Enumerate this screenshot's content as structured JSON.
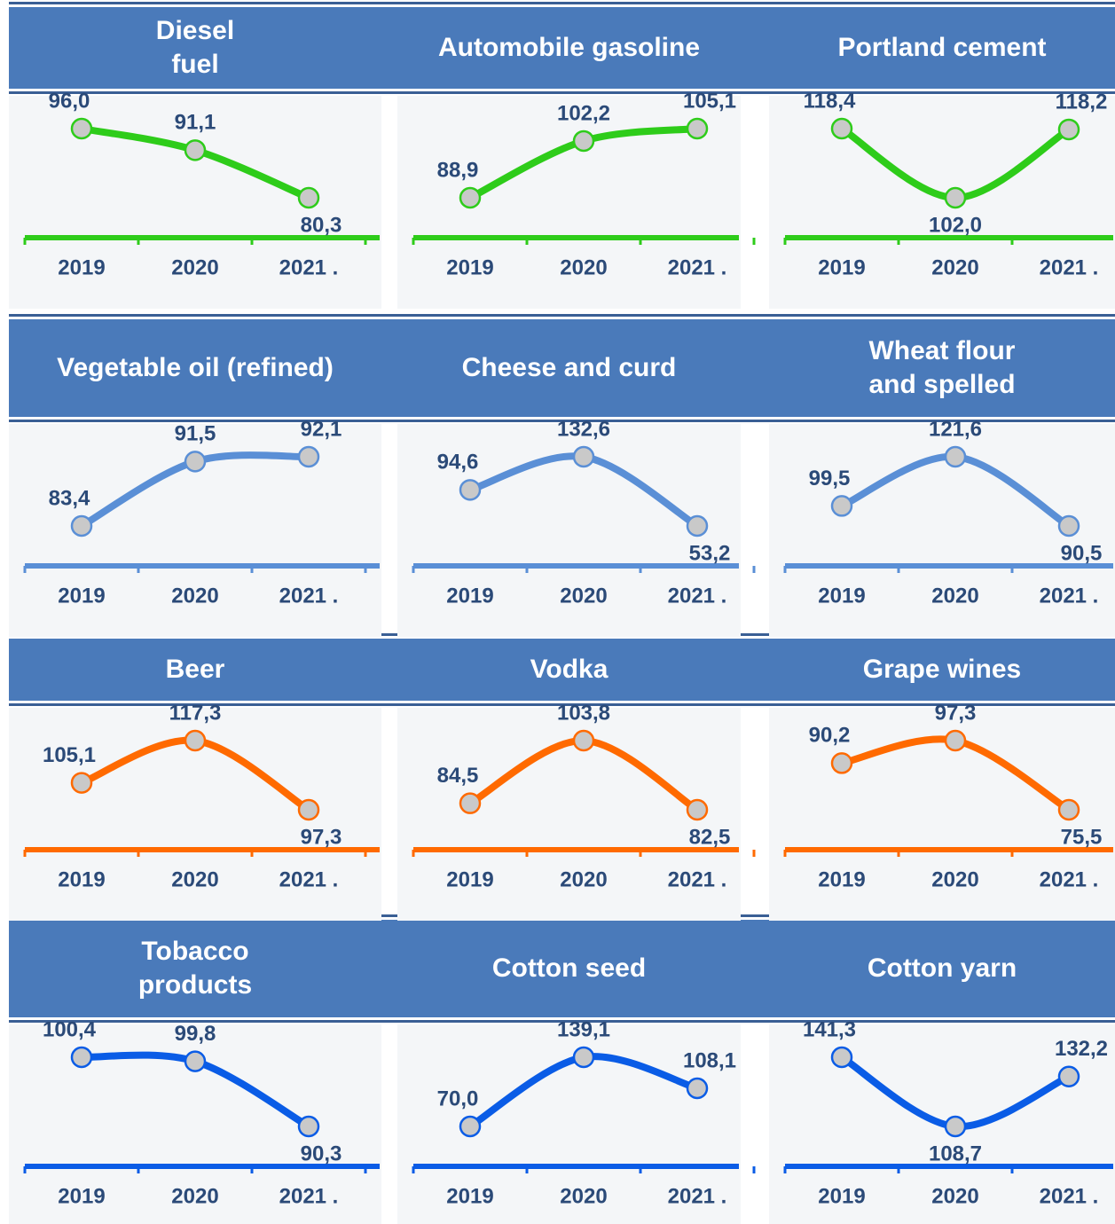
{
  "chart_data": [
    {
      "type": "line",
      "title": "Diesel\nfuel",
      "categories": [
        "2019",
        "2020",
        "2021 ."
      ],
      "values": [
        96.0,
        91.1,
        80.3
      ],
      "value_labels": [
        "96,0",
        "91,1",
        "80,3"
      ],
      "color": "#2ecc1a"
    },
    {
      "type": "line",
      "title": "Automobile gasoline",
      "categories": [
        "2019",
        "2020",
        "2021 ."
      ],
      "values": [
        88.9,
        102.2,
        105.1
      ],
      "value_labels": [
        "88,9",
        "102,2",
        "105,1"
      ],
      "color": "#2ecc1a"
    },
    {
      "type": "line",
      "title": "Portland cement",
      "categories": [
        "2019",
        "2020",
        "2021 ."
      ],
      "values": [
        118.4,
        102.0,
        118.2
      ],
      "value_labels": [
        "118,4",
        "102,0",
        "118,2"
      ],
      "color": "#2ecc1a"
    },
    {
      "type": "line",
      "title": "Vegetable oil (refined)",
      "categories": [
        "2019",
        "2020",
        "2021 ."
      ],
      "values": [
        83.4,
        91.5,
        92.1
      ],
      "value_labels": [
        "83,4",
        "91,5",
        "92,1"
      ],
      "color": "#5a8fd6"
    },
    {
      "type": "line",
      "title": "Cheese and curd",
      "categories": [
        "2019",
        "2020",
        "2021 ."
      ],
      "values": [
        94.6,
        132.6,
        53.2
      ],
      "value_labels": [
        "94,6",
        "132,6",
        "53,2"
      ],
      "color": "#5a8fd6"
    },
    {
      "type": "line",
      "title": "Wheat flour\nand spelled",
      "categories": [
        "2019",
        "2020",
        "2021 ."
      ],
      "values": [
        99.5,
        121.6,
        90.5
      ],
      "value_labels": [
        "99,5",
        "121,6",
        "90,5"
      ],
      "color": "#5a8fd6"
    },
    {
      "type": "line",
      "title": "Beer",
      "categories": [
        "2019",
        "2020",
        "2021 ."
      ],
      "values": [
        105.1,
        117.3,
        97.3
      ],
      "value_labels": [
        "105,1",
        "117,3",
        "97,3"
      ],
      "color": "#ff6a00"
    },
    {
      "type": "line",
      "title": "Vodka",
      "categories": [
        "2019",
        "2020",
        "2021 ."
      ],
      "values": [
        84.5,
        103.8,
        82.5
      ],
      "value_labels": [
        "84,5",
        "103,8",
        "82,5"
      ],
      "color": "#ff6a00"
    },
    {
      "type": "line",
      "title": "Grape wines",
      "categories": [
        "2019",
        "2020",
        "2021 ."
      ],
      "values": [
        90.2,
        97.3,
        75.5
      ],
      "value_labels": [
        "90,2",
        "97,3",
        "75,5"
      ],
      "color": "#ff6a00"
    },
    {
      "type": "line",
      "title": "Tobacco\nproducts",
      "categories": [
        "2019",
        "2020",
        "2021 ."
      ],
      "values": [
        100.4,
        99.8,
        90.3
      ],
      "value_labels": [
        "100,4",
        "99,8",
        "90,3"
      ],
      "color": "#0a5ce6"
    },
    {
      "type": "line",
      "title": "Cotton seed",
      "categories": [
        "2019",
        "2020",
        "2021 ."
      ],
      "values": [
        70.0,
        139.1,
        108.1
      ],
      "value_labels": [
        "70,0",
        "139,1",
        "108,1"
      ],
      "color": "#0a5ce6"
    },
    {
      "type": "line",
      "title": "Cotton yarn",
      "categories": [
        "2019",
        "2020",
        "2021 ."
      ],
      "values": [
        141.3,
        108.7,
        132.2
      ],
      "value_labels": [
        "141,3",
        "108,7",
        "132,2"
      ],
      "color": "#0a5ce6"
    }
  ]
}
